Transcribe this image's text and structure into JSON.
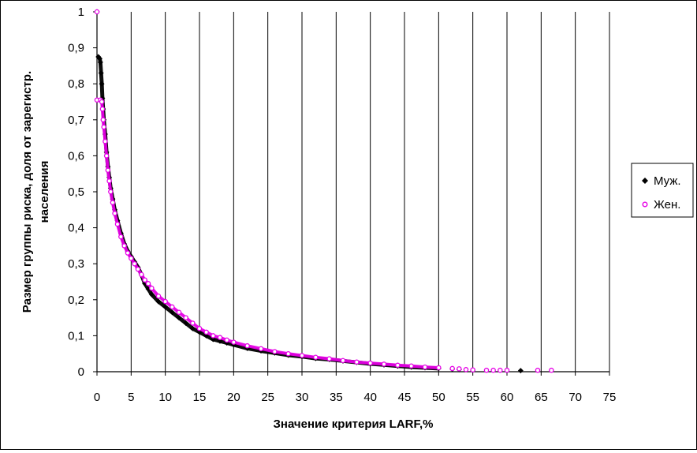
{
  "chart_data": {
    "type": "scatter",
    "xlabel": "Значение критерия LARF,%",
    "ylabel_lines": [
      "Размер группы риска, доля от зарегистр.",
      "населения"
    ],
    "xlim": [
      0,
      75
    ],
    "ylim": [
      0,
      1
    ],
    "x_ticks": [
      "0",
      "5",
      "10",
      "15",
      "20",
      "25",
      "30",
      "35",
      "40",
      "45",
      "50",
      "55",
      "60",
      "65",
      "70",
      "75"
    ],
    "y_ticks": [
      "0",
      "0,1",
      "0,2",
      "0,3",
      "0,4",
      "0,5",
      "0,6",
      "0,7",
      "0,8",
      "0,9",
      "1"
    ],
    "grid": "vertical",
    "legend_position": "right",
    "series": [
      {
        "name": "Муж.",
        "color": "#000000",
        "marker": "diamond-filled",
        "points": [
          [
            0,
            1.0
          ],
          [
            0.2,
            0.875
          ],
          [
            0.4,
            0.87
          ],
          [
            0.5,
            0.86
          ],
          [
            0.6,
            0.83
          ],
          [
            0.7,
            0.8
          ],
          [
            0.8,
            0.76
          ],
          [
            0.9,
            0.73
          ],
          [
            1.0,
            0.7
          ],
          [
            1.2,
            0.66
          ],
          [
            1.4,
            0.61
          ],
          [
            1.6,
            0.57
          ],
          [
            1.8,
            0.54
          ],
          [
            2.0,
            0.51
          ],
          [
            2.3,
            0.48
          ],
          [
            2.6,
            0.45
          ],
          [
            3.0,
            0.42
          ],
          [
            3.5,
            0.385
          ],
          [
            4.0,
            0.355
          ],
          [
            4.5,
            0.335
          ],
          [
            5.0,
            0.32
          ],
          [
            5.5,
            0.305
          ],
          [
            6.0,
            0.29
          ],
          [
            6.5,
            0.27
          ],
          [
            7.0,
            0.245
          ],
          [
            7.5,
            0.23
          ],
          [
            8.0,
            0.215
          ],
          [
            9.0,
            0.195
          ],
          [
            10.0,
            0.18
          ],
          [
            11.0,
            0.165
          ],
          [
            12.0,
            0.15
          ],
          [
            13.0,
            0.135
          ],
          [
            14.0,
            0.12
          ],
          [
            15.0,
            0.11
          ],
          [
            16.0,
            0.1
          ],
          [
            17.0,
            0.09
          ],
          [
            18.0,
            0.085
          ],
          [
            19.0,
            0.08
          ],
          [
            20.0,
            0.075
          ],
          [
            22.0,
            0.065
          ],
          [
            24.0,
            0.058
          ],
          [
            26.0,
            0.052
          ],
          [
            28.0,
            0.046
          ],
          [
            30.0,
            0.042
          ],
          [
            32.0,
            0.037
          ],
          [
            34.0,
            0.034
          ],
          [
            36.0,
            0.03
          ],
          [
            38.0,
            0.026
          ],
          [
            40.0,
            0.022
          ],
          [
            42.0,
            0.019
          ],
          [
            44.0,
            0.016
          ],
          [
            46.0,
            0.013
          ],
          [
            48.0,
            0.011
          ],
          [
            50.0,
            0.009
          ],
          [
            52.0,
            0.007
          ],
          [
            53.0,
            0.006
          ],
          [
            55.0,
            0.004
          ],
          [
            62.0,
            0.003
          ]
        ]
      },
      {
        "name": "Жен.",
        "color": "#e600e6",
        "marker": "circle-open",
        "points": [
          [
            0,
            1.0
          ],
          [
            0,
            0.755
          ],
          [
            0.5,
            0.755
          ],
          [
            0.7,
            0.75
          ],
          [
            0.8,
            0.73
          ],
          [
            0.9,
            0.7
          ],
          [
            1.0,
            0.68
          ],
          [
            1.2,
            0.64
          ],
          [
            1.4,
            0.6
          ],
          [
            1.6,
            0.56
          ],
          [
            1.8,
            0.53
          ],
          [
            2.0,
            0.5
          ],
          [
            2.3,
            0.47
          ],
          [
            2.6,
            0.44
          ],
          [
            3.0,
            0.41
          ],
          [
            3.5,
            0.375
          ],
          [
            4.0,
            0.35
          ],
          [
            4.5,
            0.33
          ],
          [
            5.0,
            0.315
          ],
          [
            5.5,
            0.3
          ],
          [
            6.0,
            0.285
          ],
          [
            6.5,
            0.27
          ],
          [
            7.0,
            0.255
          ],
          [
            7.5,
            0.245
          ],
          [
            8.0,
            0.232
          ],
          [
            9.0,
            0.21
          ],
          [
            10.0,
            0.195
          ],
          [
            11.0,
            0.18
          ],
          [
            12.0,
            0.165
          ],
          [
            13.0,
            0.15
          ],
          [
            14.0,
            0.135
          ],
          [
            15.0,
            0.12
          ],
          [
            16.0,
            0.11
          ],
          [
            17.0,
            0.1
          ],
          [
            18.0,
            0.095
          ],
          [
            19.0,
            0.088
          ],
          [
            20.0,
            0.082
          ],
          [
            22.0,
            0.072
          ],
          [
            24.0,
            0.064
          ],
          [
            26.0,
            0.056
          ],
          [
            28.0,
            0.05
          ],
          [
            30.0,
            0.045
          ],
          [
            32.0,
            0.04
          ],
          [
            34.0,
            0.036
          ],
          [
            36.0,
            0.031
          ],
          [
            38.0,
            0.027
          ],
          [
            40.0,
            0.024
          ],
          [
            42.0,
            0.021
          ],
          [
            44.0,
            0.018
          ],
          [
            46.0,
            0.016
          ],
          [
            48.0,
            0.013
          ],
          [
            50.0,
            0.011
          ],
          [
            52.0,
            0.009
          ],
          [
            53.0,
            0.008
          ],
          [
            54.0,
            0.006
          ],
          [
            55.0,
            0.005
          ],
          [
            57.0,
            0.004
          ],
          [
            58.0,
            0.004
          ],
          [
            59.0,
            0.004
          ],
          [
            60.0,
            0.004
          ],
          [
            64.5,
            0.004
          ],
          [
            66.5,
            0.004
          ]
        ]
      }
    ]
  }
}
